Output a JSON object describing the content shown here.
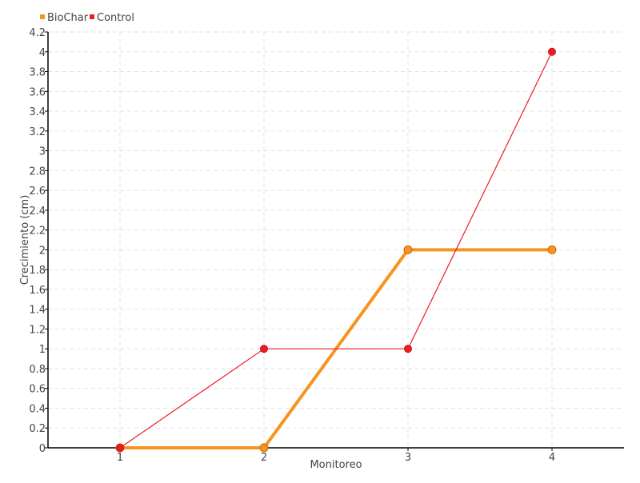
{
  "chart_data": {
    "type": "line",
    "xlabel": "Monitoreo",
    "ylabel": "Crecimiento (cm)",
    "categories": [
      "1",
      "2",
      "3",
      "4"
    ],
    "x": [
      1,
      2,
      3,
      4
    ],
    "xlim": [
      0.5,
      4.5
    ],
    "ylim": [
      0,
      4.2
    ],
    "yticks": [
      "0",
      "0.2",
      "0.4",
      "0.6",
      "0.8",
      "1",
      "1.2",
      "1.4",
      "1.6",
      "1.8",
      "2",
      "2.2",
      "2.4",
      "2.6",
      "2.8",
      "3",
      "3.2",
      "3.4",
      "3.6",
      "3.8",
      "4",
      "4.2"
    ],
    "grid": true,
    "legend_position": "top-left",
    "series": [
      {
        "name": "BioChar",
        "values": [
          0,
          0,
          2,
          2
        ],
        "color": "#f7931e"
      },
      {
        "name": "Control",
        "values": [
          0,
          1,
          1,
          4
        ],
        "color": "#ed1c24"
      }
    ]
  }
}
